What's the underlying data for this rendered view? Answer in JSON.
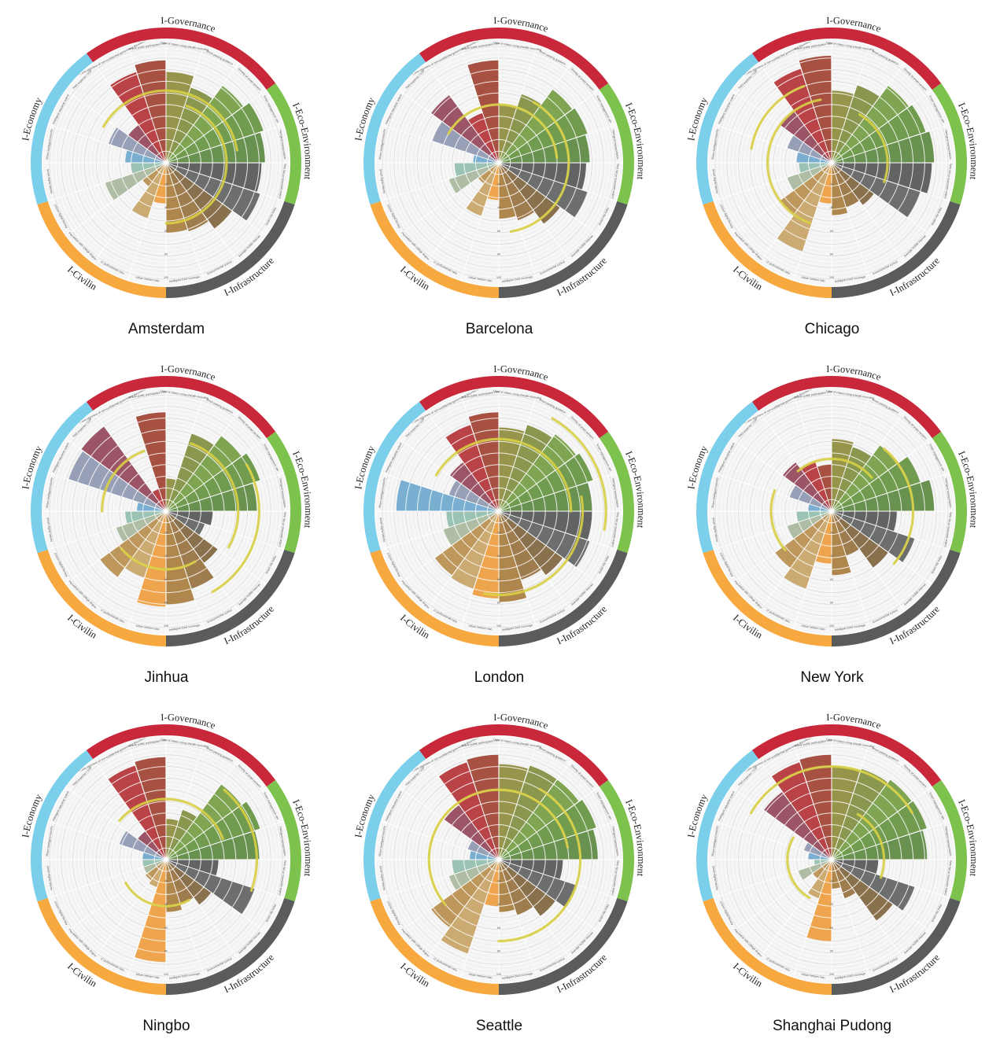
{
  "sectors": [
    {
      "key": "gov",
      "name": "I-Governance",
      "color": "#c8283a"
    },
    {
      "key": "eco",
      "name": "I-Eco-Environment",
      "color": "#7ec24e"
    },
    {
      "key": "infra",
      "name": "I-Infrastructure",
      "color": "#5a5c5b"
    },
    {
      "key": "civ",
      "name": "I-Civilin",
      "color": "#f7a83f"
    },
    {
      "key": "econ",
      "name": "I-Economy",
      "color": "#7ccfea"
    }
  ],
  "indicators": [
    {
      "label": "Level of citizen using ehealth recording",
      "sector": "gov",
      "color": "#8a8734"
    },
    {
      "label": "Smart parking guidance",
      "sector": "eco",
      "color": "#7a8a38"
    },
    {
      "label": "Density of smart sensors",
      "sector": "eco",
      "color": "#6e9a3c"
    },
    {
      "label": "Smart management rate",
      "sector": "eco",
      "color": "#5f8f38"
    },
    {
      "label": "Intelligent transportation",
      "sector": "eco",
      "color": "#55843a"
    },
    {
      "label": "Online openness of city data",
      "sector": "infra",
      "color": "#4d4f4e"
    },
    {
      "label": "Smart city index",
      "sector": "infra",
      "color": "#5a5c5b"
    },
    {
      "label": "Average mobile internet",
      "sector": "infra",
      "color": "#7a5f36"
    },
    {
      "label": "Environmental control",
      "sector": "infra",
      "color": "#936b35"
    },
    {
      "label": "Intelligent DAS coverage",
      "sector": "infra",
      "color": "#a57834"
    },
    {
      "label": "Urban netizen ratio",
      "sector": "civ",
      "color": "#ee9a35"
    },
    {
      "label": "IT professionals ratio",
      "sector": "civ",
      "color": "#c6a060"
    },
    {
      "label": "Population with college degree",
      "sector": "civ",
      "color": "#b58a45"
    },
    {
      "label": "Citizen digital literacy",
      "sector": "civ",
      "color": "#a5b59a"
    },
    {
      "label": "Smart digital talents",
      "sector": "econ",
      "color": "#8dbcab"
    },
    {
      "label": "Share intelligent industry",
      "sector": "econ",
      "color": "#6aa5cc"
    },
    {
      "label": "Intelligent industrial output",
      "sector": "econ",
      "color": "#8a94ae"
    },
    {
      "label": "R&D expense / GDP",
      "sector": "econ",
      "color": "#8e3f52"
    },
    {
      "label": "Online openness of non-confidential government documents",
      "sector": "gov",
      "color": "#b02a2e"
    },
    {
      "label": "Online public participation rate",
      "sector": "gov",
      "color": "#9c3a2a"
    }
  ],
  "ring_ticks": [
    "10",
    "20",
    "30",
    "40",
    "50",
    "60",
    "70",
    "80",
    "90",
    "100"
  ],
  "chart_data": [
    {
      "type": "polar-bar",
      "title": "Amsterdam",
      "values": [
        78,
        68,
        82,
        88,
        85,
        82,
        85,
        70,
        62,
        60,
        35,
        50,
        25,
        55,
        30,
        35,
        52,
        40,
        82,
        88
      ],
      "arcs": [
        {
          "radius": 62,
          "from": 300,
          "to": 440
        },
        {
          "radius": 52,
          "from": 20,
          "to": 180
        }
      ]
    },
    {
      "type": "polar-bar",
      "title": "Barcelona",
      "values": [
        50,
        62,
        78,
        80,
        78,
        75,
        80,
        65,
        52,
        48,
        32,
        48,
        22,
        45,
        38,
        22,
        60,
        72,
        45,
        88
      ],
      "arcs": [
        {
          "radius": 50,
          "from": 300,
          "to": 445
        },
        {
          "radius": 60,
          "from": 30,
          "to": 170
        }
      ]
    },
    {
      "type": "polar-bar",
      "title": "Chicago",
      "values": [
        62,
        70,
        82,
        85,
        88,
        86,
        80,
        45,
        40,
        45,
        35,
        80,
        55,
        40,
        28,
        30,
        40,
        55,
        85,
        92
      ],
      "arcs": [
        {
          "radius": 55,
          "from": 200,
          "to": 350
        },
        {
          "radius": 48,
          "from": 30,
          "to": 110
        },
        {
          "radius": 70,
          "from": 280,
          "to": 340
        }
      ]
    },
    {
      "type": "polar-bar",
      "title": "Jinhua",
      "values": [
        28,
        70,
        80,
        85,
        78,
        40,
        35,
        55,
        70,
        80,
        82,
        60,
        70,
        45,
        35,
        25,
        88,
        90,
        20,
        85
      ],
      "arcs": [
        {
          "radius": 55,
          "from": 270,
          "to": 340
        },
        {
          "radius": 62,
          "from": 20,
          "to": 120
        },
        {
          "radius": 80,
          "from": 60,
          "to": 150
        },
        {
          "radius": 50,
          "from": 150,
          "to": 230
        }
      ]
    },
    {
      "type": "polar-bar",
      "title": "London",
      "values": [
        72,
        78,
        82,
        85,
        80,
        80,
        82,
        68,
        62,
        78,
        75,
        70,
        68,
        50,
        45,
        88,
        45,
        52,
        78,
        85
      ],
      "arcs": [
        {
          "radius": 62,
          "from": 300,
          "to": 450
        },
        {
          "radius": 72,
          "from": 80,
          "to": 190
        },
        {
          "radius": 92,
          "from": 30,
          "to": 100
        }
      ]
    },
    {
      "type": "polar-bar",
      "title": "New York",
      "values": [
        62,
        58,
        70,
        80,
        88,
        56,
        75,
        60,
        40,
        55,
        45,
        70,
        60,
        40,
        30,
        20,
        38,
        52,
        45,
        40
      ],
      "arcs": [
        {
          "radius": 45,
          "from": 320,
          "to": 410
        },
        {
          "radius": 70,
          "from": 40,
          "to": 130
        },
        {
          "radius": 52,
          "from": 230,
          "to": 290
        }
      ]
    },
    {
      "type": "polar-bar",
      "title": "Ningbo",
      "values": [
        35,
        45,
        80,
        85,
        80,
        45,
        80,
        48,
        40,
        45,
        88,
        25,
        22,
        20,
        20,
        20,
        42,
        30,
        85,
        88
      ],
      "arcs": [
        {
          "radius": 52,
          "from": 310,
          "to": 430
        },
        {
          "radius": 78,
          "from": 40,
          "to": 110
        },
        {
          "radius": 40,
          "from": 150,
          "to": 240
        }
      ]
    },
    {
      "type": "polar-bar",
      "title": "Seattle",
      "values": [
        82,
        85,
        85,
        88,
        85,
        55,
        70,
        60,
        50,
        45,
        40,
        85,
        72,
        45,
        40,
        25,
        28,
        58,
        88,
        90
      ],
      "arcs": [
        {
          "radius": 60,
          "from": 230,
          "to": 440
        },
        {
          "radius": 70,
          "from": 30,
          "to": 180
        }
      ]
    },
    {
      "type": "polar-bar",
      "title": "Shanghai Pudong",
      "values": [
        80,
        82,
        85,
        86,
        82,
        40,
        75,
        65,
        35,
        25,
        70,
        35,
        20,
        30,
        15,
        20,
        25,
        72,
        88,
        90
      ],
      "arcs": [
        {
          "radius": 80,
          "from": 300,
          "to": 420
        },
        {
          "radius": 45,
          "from": 30,
          "to": 110
        },
        {
          "radius": 38,
          "from": 210,
          "to": 300
        }
      ]
    }
  ]
}
